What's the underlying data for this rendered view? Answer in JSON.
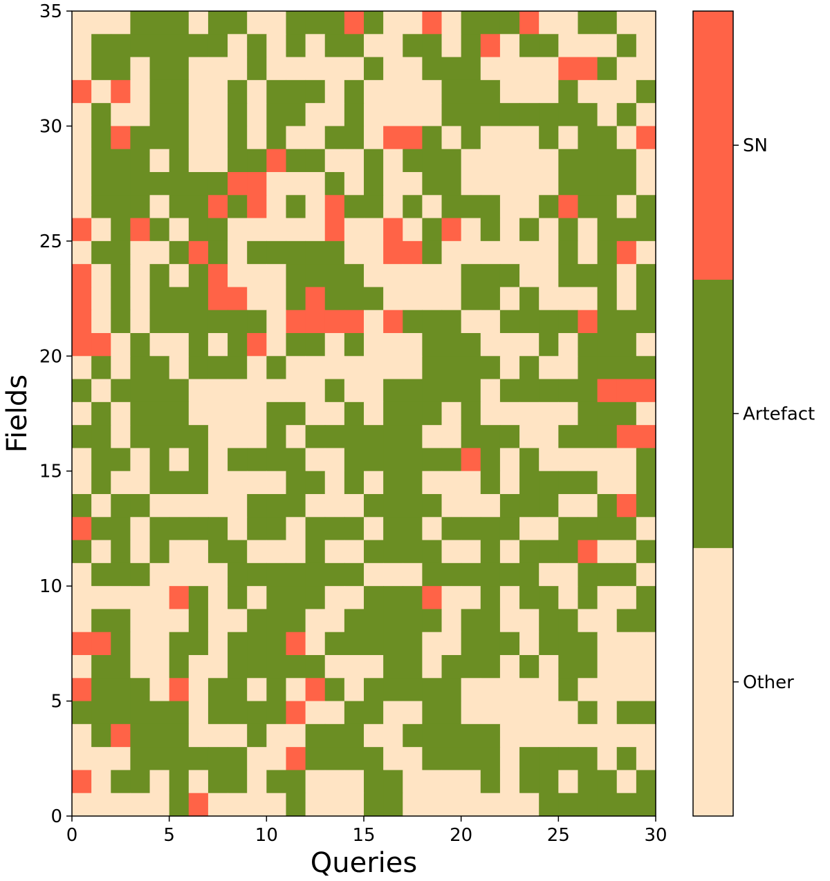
{
  "chart_data": {
    "type": "heatmap",
    "title": "",
    "xlabel": "Queries",
    "ylabel": "Fields",
    "xlim": [
      0,
      30
    ],
    "ylim": [
      0,
      35
    ],
    "x_ticks": [
      "0",
      "5",
      "10",
      "15",
      "20",
      "25",
      "30"
    ],
    "y_ticks": [
      "0",
      "5",
      "10",
      "15",
      "20",
      "25",
      "30",
      "35"
    ],
    "n_cols": 30,
    "n_rows": 35,
    "categories": [
      "Other",
      "Artefact",
      "SN"
    ],
    "colors": {
      "Other": "#ffe4c4",
      "Artefact": "#6b8e23",
      "SN": "#ff6347"
    },
    "legend": "colorbar-right",
    "grid": false,
    "cell_codes_note_order": "rows listed from top (row 34) to bottom (row 0); 0=Other,1=Artefact,2=SN",
    "rows_top_to_bottom": [
      "000111011001112100201112001100",
      "011111110101011001101201100010",
      "011011000100000100111000022100",
      "202011001011101000011100010001",
      "010011001011001000011111111010",
      "012111001010011022101000101102",
      "011101001121100101110000011110",
      "011111112200010100110000011110",
      "011101121201021101011100121101",
      "201210110000020020120101010111",
      "011001210111110022100000010120",
      "201010120001111000001110011101",
      "201011122001211100001101000101",
      "201011111102222021110011112111",
      "220100101201101000111000101110",
      "010110111010000000111101001111",
      "101111000000010011111011111222",
      "010111000011001011101000001110",
      "110111100010111111001110011122",
      "011010101111001111112101000001",
      "010011100001101011000101111001",
      "101100000111000111100011100121",
      "211011110110111011011110011110",
      "101010011000100111100101112001",
      "011100001111111000111111001110",
      "000002101011100111200101101001",
      "011000100111001111101100110011",
      "221001101112011111001110111000",
      "011001001111100011011101011000",
      "211102011010210111110000010000",
      "111111011112001100110000001011",
      "012111000100111001111100000000",
      "000111111002111100111101111010",
      "201101011011000110000101101101",
      "000001200001000110000000111111"
    ]
  }
}
